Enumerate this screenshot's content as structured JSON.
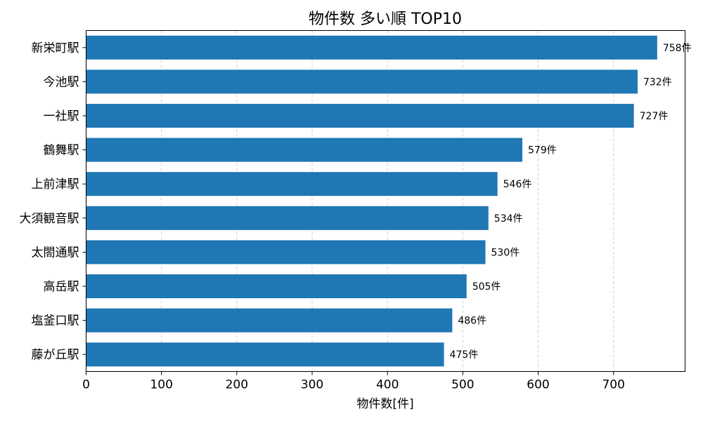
{
  "chart_data": {
    "type": "bar",
    "orientation": "horizontal",
    "title": "物件数 多い順 TOP10",
    "xlabel": "物件数[件]",
    "ylabel": "",
    "xlim": [
      0,
      795
    ],
    "xticks": [
      0,
      100,
      200,
      300,
      400,
      500,
      600,
      700
    ],
    "grid": "x-dashed",
    "bar_color": "#1f77b4",
    "value_suffix": "件",
    "categories": [
      "新栄町駅",
      "今池駅",
      "一社駅",
      "鶴舞駅",
      "上前津駅",
      "大須観音駅",
      "太閤通駅",
      "高岳駅",
      "塩釜口駅",
      "藤が丘駅"
    ],
    "values": [
      758,
      732,
      727,
      579,
      546,
      534,
      530,
      505,
      486,
      475
    ]
  }
}
